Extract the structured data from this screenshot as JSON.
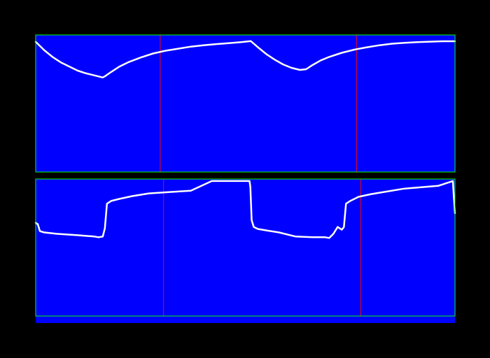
{
  "colors": {
    "background": "#000000",
    "plot_bg": "#0000ff",
    "frame": "#00ff00",
    "marker": "#ff0000",
    "trace": "#ffffff"
  },
  "chart_data": [
    {
      "type": "line",
      "title": "",
      "xlabel": "",
      "ylabel": "",
      "xlim": [
        0,
        100
      ],
      "ylim": [
        0,
        100
      ],
      "grid": false,
      "markers_x": [
        29.7,
        76.5
      ],
      "series": [
        {
          "x": [
            0,
            2,
            4,
            6,
            8,
            10,
            12,
            14,
            16,
            16.5,
            18,
            20,
            22,
            25,
            28,
            31,
            34,
            37,
            40,
            43,
            46,
            49,
            51.3,
            53,
            55,
            57,
            59,
            61,
            63,
            64.5,
            66,
            68,
            70,
            73,
            76,
            79,
            82,
            85,
            88,
            91,
            94,
            97,
            100
          ],
          "y": [
            95,
            89,
            84,
            80,
            77,
            74,
            72,
            70.5,
            69,
            69.8,
            73,
            77,
            80,
            83.5,
            86.5,
            88.5,
            90,
            91.5,
            92.5,
            93.3,
            94,
            94.8,
            95.5,
            91,
            86,
            82,
            78.5,
            76,
            74.5,
            75,
            78,
            81.5,
            84,
            87,
            89.3,
            91,
            92.5,
            93.6,
            94.3,
            94.8,
            95.1,
            95.4,
            95.4
          ]
        }
      ]
    },
    {
      "type": "line",
      "title": "",
      "xlabel": "",
      "ylabel": "",
      "xlim": [
        0,
        100
      ],
      "ylim": [
        0,
        100
      ],
      "grid": false,
      "markers_x": [
        30.5,
        77.5
      ],
      "series": [
        {
          "x": [
            0,
            0.5,
            1,
            2,
            5,
            10,
            14,
            15,
            16,
            16.5,
            17,
            18,
            20,
            23,
            27,
            32,
            37,
            42,
            47,
            51,
            51.2,
            51.5,
            52,
            53,
            55,
            58,
            62,
            66,
            69,
            70,
            71,
            72,
            73,
            73.5,
            74,
            75,
            77,
            80,
            84,
            88,
            92,
            96,
            99.5,
            99.7,
            100
          ],
          "y": [
            68,
            67,
            62,
            61,
            60,
            59,
            58,
            57.5,
            58,
            64,
            82,
            84,
            85.5,
            87.5,
            89.5,
            90.5,
            91.5,
            98.5,
            98.5,
            98.5,
            94,
            70,
            65,
            63.5,
            62.5,
            61,
            58,
            57.5,
            57.5,
            57,
            60,
            65,
            63,
            65,
            82,
            84,
            87,
            89,
            91,
            93,
            94,
            95,
            98.5,
            88,
            75
          ]
        }
      ]
    }
  ]
}
